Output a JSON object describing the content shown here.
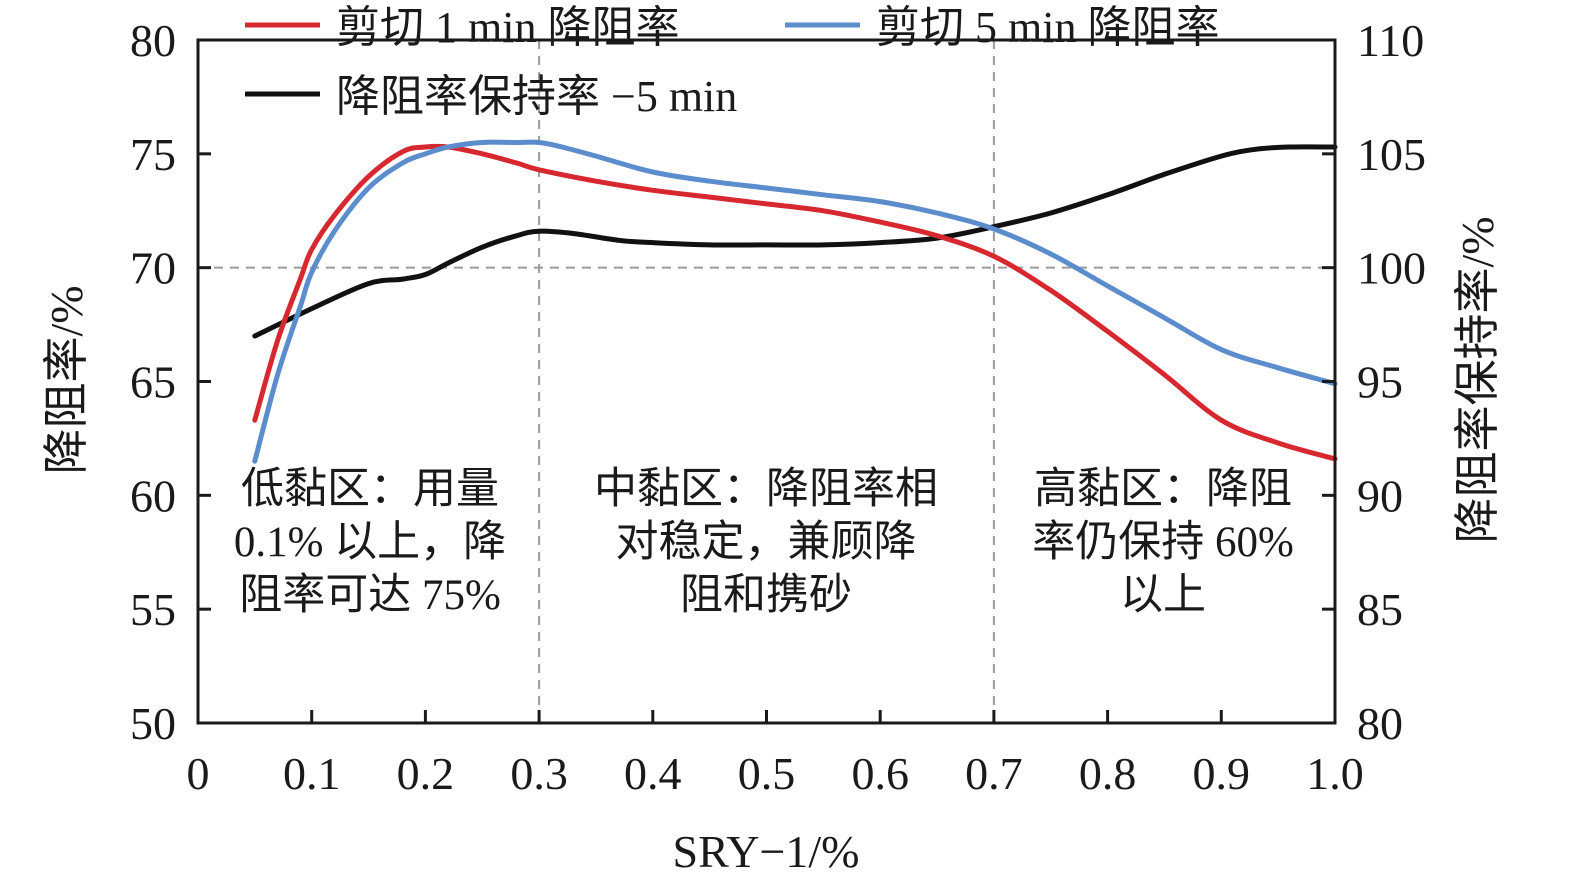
{
  "chart_data": {
    "type": "line",
    "xlabel": "SRY−1/%",
    "ylabel": "降阻率/%",
    "ylabel_right": "降阻率保持率/%",
    "xlim": [
      0,
      1.0
    ],
    "ylim": [
      50,
      80
    ],
    "ylim_right": [
      80,
      110
    ],
    "x_ticks": [
      "0",
      "0.1",
      "0.2",
      "0.3",
      "0.4",
      "0.5",
      "0.6",
      "0.7",
      "0.8",
      "0.9",
      "1.0"
    ],
    "y_ticks": [
      "50",
      "55",
      "60",
      "65",
      "70",
      "75",
      "80"
    ],
    "y_ticks_right": [
      "80",
      "85",
      "90",
      "95",
      "100",
      "105",
      "110"
    ],
    "reference_lines": {
      "horizontal_y": 70,
      "vertical_x": [
        0.3,
        0.7
      ]
    },
    "grid": false,
    "legend_position": "top",
    "series": [
      {
        "name": "剪切 1 min 降阻率",
        "axis": "left",
        "color": "#d7282f",
        "x": [
          0.05,
          0.07,
          0.09,
          0.1,
          0.12,
          0.15,
          0.18,
          0.2,
          0.22,
          0.25,
          0.28,
          0.3,
          0.35,
          0.4,
          0.45,
          0.5,
          0.55,
          0.6,
          0.65,
          0.7,
          0.75,
          0.8,
          0.85,
          0.9,
          0.95,
          1.0
        ],
        "values": [
          63.3,
          66.8,
          69.5,
          70.8,
          72.3,
          74.0,
          75.1,
          75.3,
          75.3,
          75.0,
          74.6,
          74.3,
          73.8,
          73.4,
          73.1,
          72.8,
          72.5,
          72.0,
          71.4,
          70.5,
          69.0,
          67.2,
          65.3,
          63.3,
          62.3,
          61.6
        ]
      },
      {
        "name": "剪切 5 min 降阻率",
        "axis": "left",
        "color": "#5b8ccc",
        "x": [
          0.05,
          0.07,
          0.09,
          0.1,
          0.12,
          0.15,
          0.18,
          0.2,
          0.22,
          0.25,
          0.28,
          0.3,
          0.32,
          0.35,
          0.4,
          0.45,
          0.5,
          0.55,
          0.6,
          0.65,
          0.7,
          0.75,
          0.8,
          0.85,
          0.9,
          0.95,
          1.0
        ],
        "values": [
          61.5,
          65.3,
          68.3,
          69.8,
          71.6,
          73.5,
          74.6,
          75.0,
          75.3,
          75.5,
          75.5,
          75.5,
          75.3,
          74.9,
          74.2,
          73.8,
          73.5,
          73.2,
          72.9,
          72.4,
          71.7,
          70.6,
          69.2,
          67.8,
          66.4,
          65.6,
          64.9
        ]
      },
      {
        "name": "降阻率保持率 −5 min",
        "axis": "right",
        "color": "#111111",
        "x": [
          0.05,
          0.1,
          0.15,
          0.18,
          0.2,
          0.22,
          0.25,
          0.28,
          0.3,
          0.33,
          0.37,
          0.4,
          0.45,
          0.5,
          0.55,
          0.6,
          0.65,
          0.7,
          0.75,
          0.8,
          0.85,
          0.9,
          0.93,
          0.96,
          1.0
        ],
        "values": [
          97.0,
          98.2,
          99.3,
          99.5,
          99.7,
          100.2,
          100.9,
          101.4,
          101.6,
          101.5,
          101.2,
          101.1,
          101.0,
          101.0,
          101.0,
          101.1,
          101.3,
          101.8,
          102.4,
          103.2,
          104.1,
          104.9,
          105.2,
          105.3,
          105.3
        ]
      }
    ],
    "annotations": [
      {
        "lines": [
          "低黏区：用量",
          "0.1% 以上，降",
          "阻率可达 75%"
        ]
      },
      {
        "lines": [
          "中黏区：降阻率相",
          "对稳定，兼顾降",
          "阻和携砂"
        ]
      },
      {
        "lines": [
          "高黏区：降阻",
          "率仍保持 60%",
          "以上"
        ]
      }
    ]
  }
}
